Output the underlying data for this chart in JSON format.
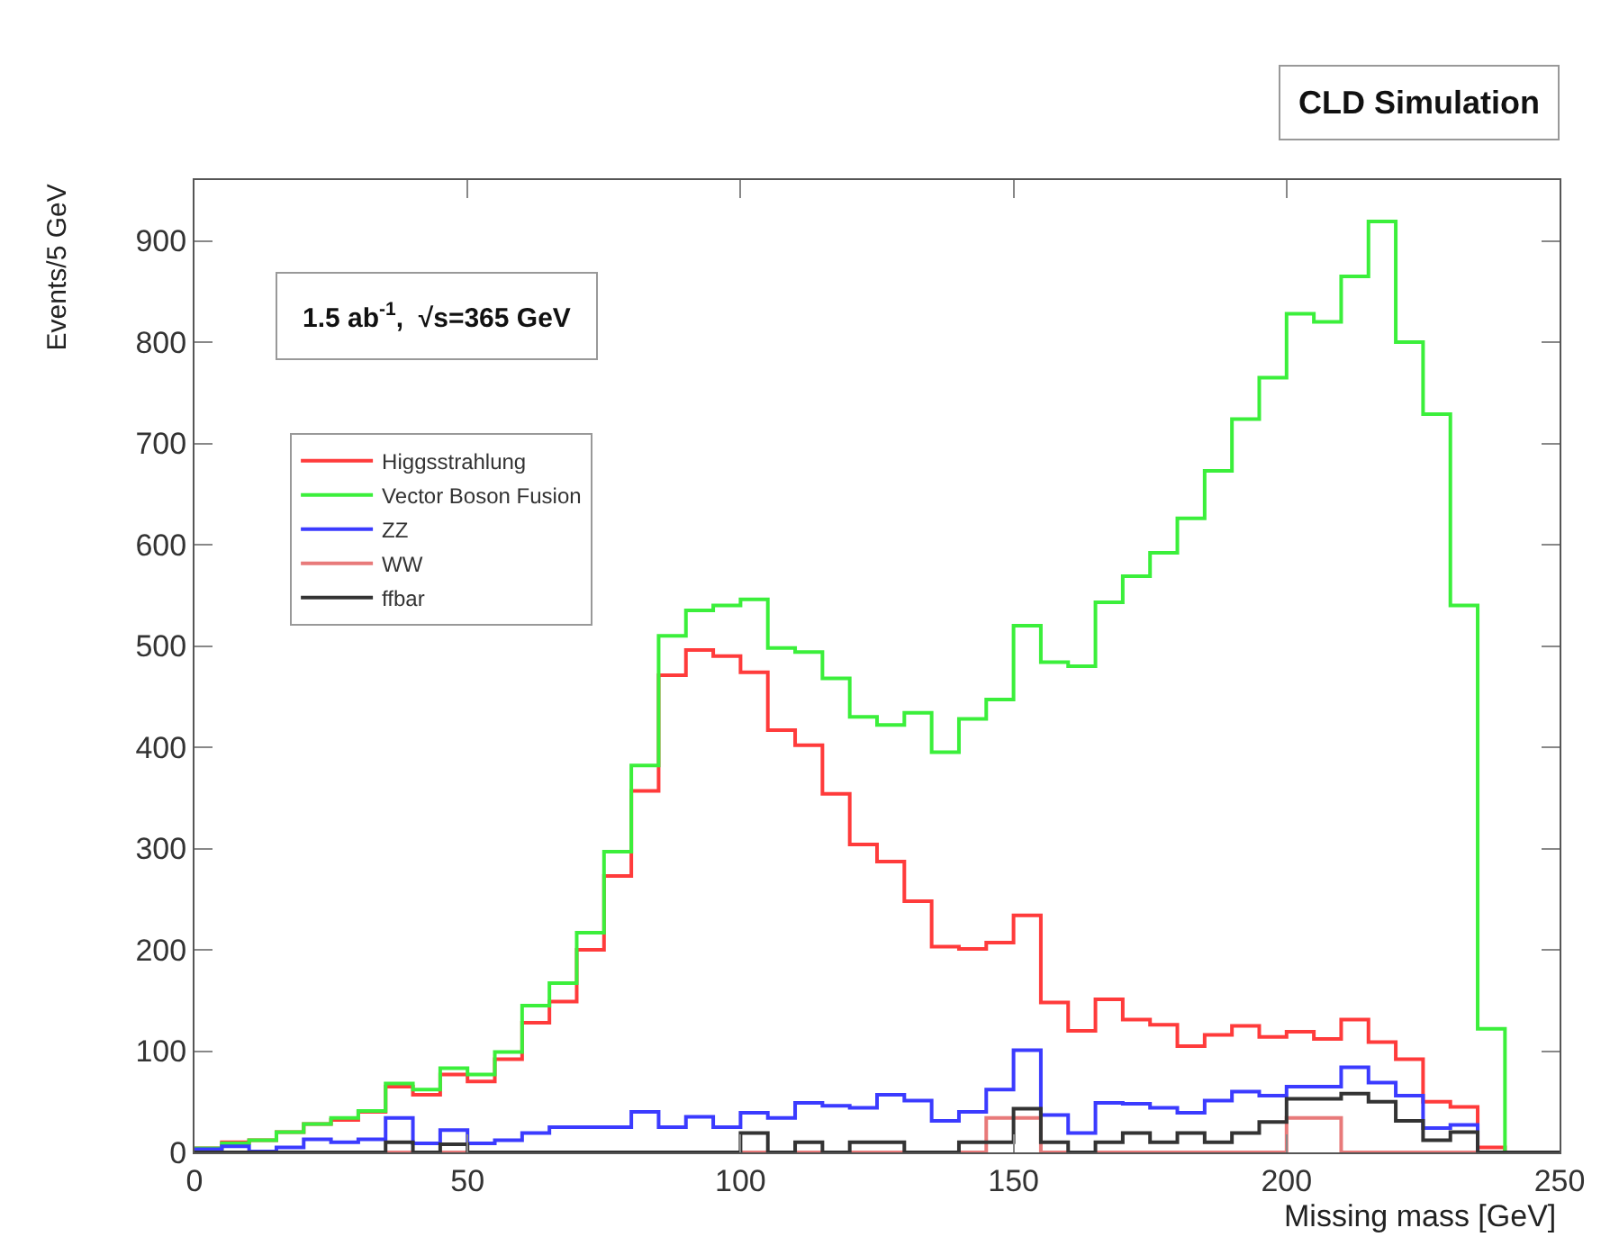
{
  "chart_data": {
    "type": "histogram",
    "xlabel": "Missing mass [GeV]",
    "ylabel": "Events/5 GeV",
    "annotations": [
      "CLD Simulation",
      "1.5 ab$^{-1}$,  √s=365 GeV"
    ],
    "bins": [
      0,
      5,
      10,
      15,
      20,
      25,
      30,
      35,
      40,
      45,
      50,
      55,
      60,
      65,
      70,
      75,
      80,
      85,
      90,
      95,
      100,
      105,
      110,
      115,
      120,
      125,
      130,
      135,
      140,
      145,
      150,
      155,
      160,
      165,
      170,
      175,
      180,
      185,
      190,
      195,
      200,
      205,
      210,
      215,
      220,
      225,
      230,
      235,
      240,
      245,
      250
    ],
    "series": [
      {
        "name": "Higgsstrahlung",
        "color": "#ff3b3b",
        "values": [
          4,
          10,
          12,
          20,
          28,
          32,
          40,
          65,
          57,
          77,
          70,
          92,
          128,
          149,
          200,
          273,
          357,
          471,
          496,
          490,
          474,
          417,
          402,
          354,
          304,
          287,
          248,
          203,
          201,
          207,
          234,
          148,
          120,
          151,
          131,
          126,
          105,
          116,
          125,
          114,
          119,
          112,
          131,
          109,
          92,
          50,
          45,
          5,
          0,
          0
        ]
      },
      {
        "name": "Vector Boson Fusion",
        "color": "#3bef3b",
        "values": [
          4,
          9,
          12,
          20,
          28,
          34,
          41,
          68,
          62,
          83,
          77,
          99,
          145,
          167,
          217,
          297,
          382,
          510,
          535,
          540,
          546,
          498,
          494,
          468,
          430,
          422,
          434,
          395,
          428,
          447,
          520,
          484,
          480,
          543,
          569,
          592,
          626,
          673,
          724,
          765,
          828,
          820,
          865,
          919,
          800,
          729,
          540,
          122,
          0,
          0
        ]
      },
      {
        "name": "ZZ",
        "color": "#3b3bff",
        "values": [
          3,
          6,
          1,
          5,
          13,
          10,
          13,
          34,
          9,
          22,
          9,
          12,
          19,
          25,
          25,
          25,
          40,
          25,
          35,
          25,
          39,
          34,
          49,
          46,
          44,
          57,
          51,
          31,
          40,
          62,
          101,
          37,
          19,
          49,
          48,
          44,
          39,
          51,
          60,
          56,
          65,
          65,
          84,
          69,
          56,
          24,
          27,
          0,
          0,
          0
        ]
      },
      {
        "name": "WW",
        "color": "#e87a7a",
        "values": [
          0,
          0,
          0,
          0,
          0,
          0,
          0,
          0,
          0,
          0,
          0,
          0,
          0,
          0,
          0,
          0,
          0,
          0,
          0,
          0,
          0,
          0,
          0,
          0,
          0,
          0,
          0,
          0,
          0,
          34,
          34,
          0,
          0,
          0,
          0,
          0,
          0,
          0,
          0,
          0,
          34,
          34,
          0,
          0,
          0,
          0,
          0,
          0,
          0,
          0
        ]
      },
      {
        "name": "ffbar",
        "color": "#333333",
        "values": [
          0,
          0,
          0,
          0,
          0,
          0,
          0,
          10,
          0,
          8,
          0,
          0,
          0,
          0,
          0,
          0,
          0,
          0,
          0,
          0,
          19,
          0,
          10,
          0,
          10,
          10,
          0,
          0,
          10,
          10,
          43,
          10,
          0,
          10,
          19,
          10,
          19,
          10,
          19,
          30,
          53,
          53,
          58,
          50,
          31,
          12,
          20,
          0,
          0,
          0
        ]
      }
    ],
    "xlim": [
      0,
      250
    ],
    "xticks": [
      0,
      50,
      100,
      150,
      200,
      250
    ],
    "ylim": [
      0,
      960
    ],
    "yticks": [
      0,
      100,
      200,
      300,
      400,
      500,
      600,
      700,
      800,
      900
    ],
    "legend": "top left",
    "grid": false
  }
}
